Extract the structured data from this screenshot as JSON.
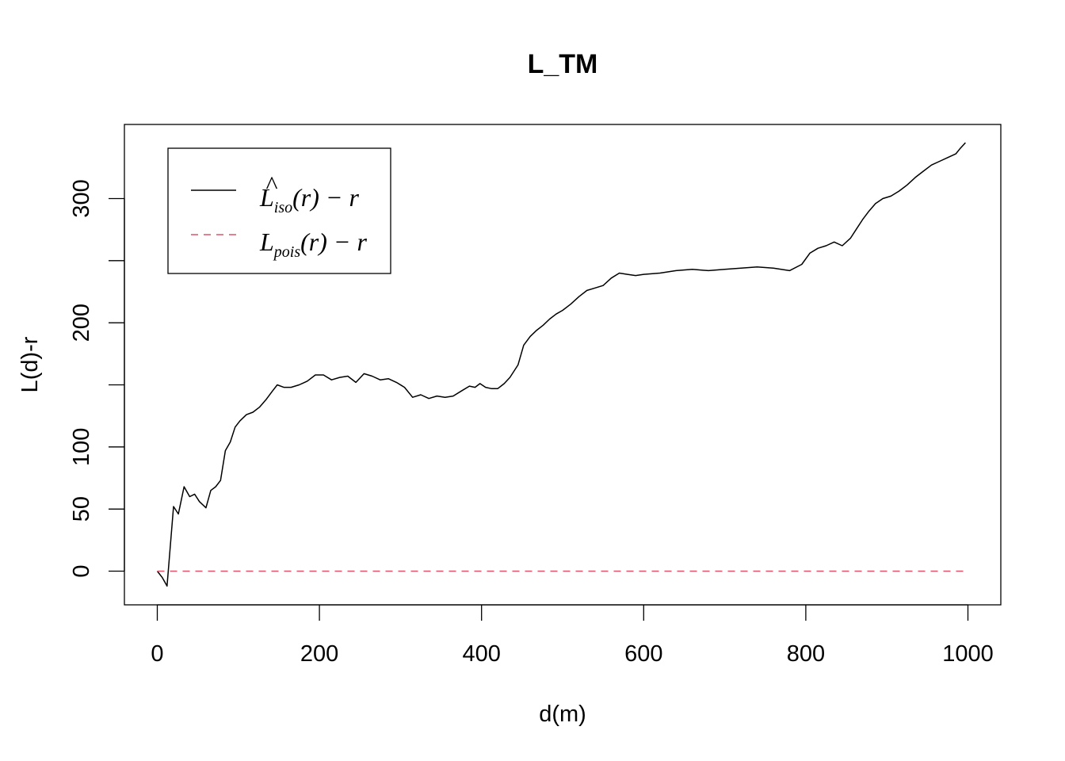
{
  "chart_data": {
    "type": "line",
    "title": "L_TM",
    "xlabel": "d(m)",
    "ylabel": "L(d)-r",
    "xlim": [
      0,
      1000
    ],
    "ylim": [
      -13,
      350
    ],
    "x_ticks": [
      0,
      200,
      400,
      600,
      800,
      1000
    ],
    "y_ticks": [
      0,
      50,
      100,
      150,
      200,
      250,
      300
    ],
    "y_tick_labels": [
      "0",
      "50",
      "100",
      "",
      "200",
      "",
      "300"
    ],
    "grid": false,
    "legend": {
      "placement": "top-left",
      "entries": [
        {
          "main": "L",
          "hat": "^",
          "sub": "iso",
          "rest": "(r) − r",
          "color": "#000000",
          "dash": "solid"
        },
        {
          "main": "L",
          "hat": "",
          "sub": "pois",
          "rest": "(r) − r",
          "color": "#DF536B",
          "dash": "dashed"
        }
      ]
    },
    "series": [
      {
        "color": "#000000",
        "dash": "solid",
        "x": [
          0,
          6,
          12,
          20,
          26,
          33,
          40,
          46,
          52,
          60,
          66,
          72,
          78,
          84,
          90,
          96,
          102,
          110,
          118,
          126,
          134,
          142,
          148,
          156,
          165,
          175,
          185,
          195,
          205,
          215,
          225,
          235,
          245,
          255,
          265,
          275,
          285,
          295,
          305,
          315,
          325,
          335,
          345,
          355,
          365,
          375,
          385,
          392,
          398,
          405,
          412,
          420,
          428,
          435,
          445,
          452,
          460,
          468,
          476,
          484,
          492,
          500,
          510,
          520,
          530,
          540,
          550,
          560,
          570,
          580,
          590,
          600,
          620,
          640,
          660,
          680,
          700,
          720,
          740,
          760,
          780,
          795,
          805,
          815,
          825,
          835,
          845,
          855,
          862,
          870,
          878,
          886,
          895,
          905,
          915,
          925,
          935,
          945,
          955,
          965,
          975,
          985,
          990,
          997
        ],
        "y": [
          0,
          -5,
          -12,
          52,
          46,
          68,
          60,
          62,
          56,
          51,
          65,
          68,
          73,
          97,
          104,
          116,
          121,
          126,
          128,
          132,
          138,
          145,
          150,
          148,
          148,
          150,
          153,
          158,
          158,
          154,
          156,
          157,
          152,
          159,
          157,
          154,
          155,
          152,
          148,
          140,
          142,
          139,
          141,
          140,
          141,
          145,
          149,
          148,
          151,
          148,
          147,
          147,
          151,
          156,
          166,
          182,
          189,
          194,
          198,
          203,
          207,
          210,
          215,
          221,
          226,
          228,
          230,
          236,
          240,
          239,
          238,
          239,
          240,
          242,
          243,
          242,
          243,
          244,
          245,
          244,
          242,
          247,
          256,
          260,
          262,
          265,
          262,
          268,
          275,
          283,
          290,
          296,
          300,
          302,
          306,
          311,
          317,
          322,
          327,
          330,
          333,
          336,
          340,
          345
        ]
      },
      {
        "color": "#DF536B",
        "dash": "dashed",
        "x": [
          0,
          1000
        ],
        "y": [
          0,
          0
        ]
      }
    ]
  }
}
